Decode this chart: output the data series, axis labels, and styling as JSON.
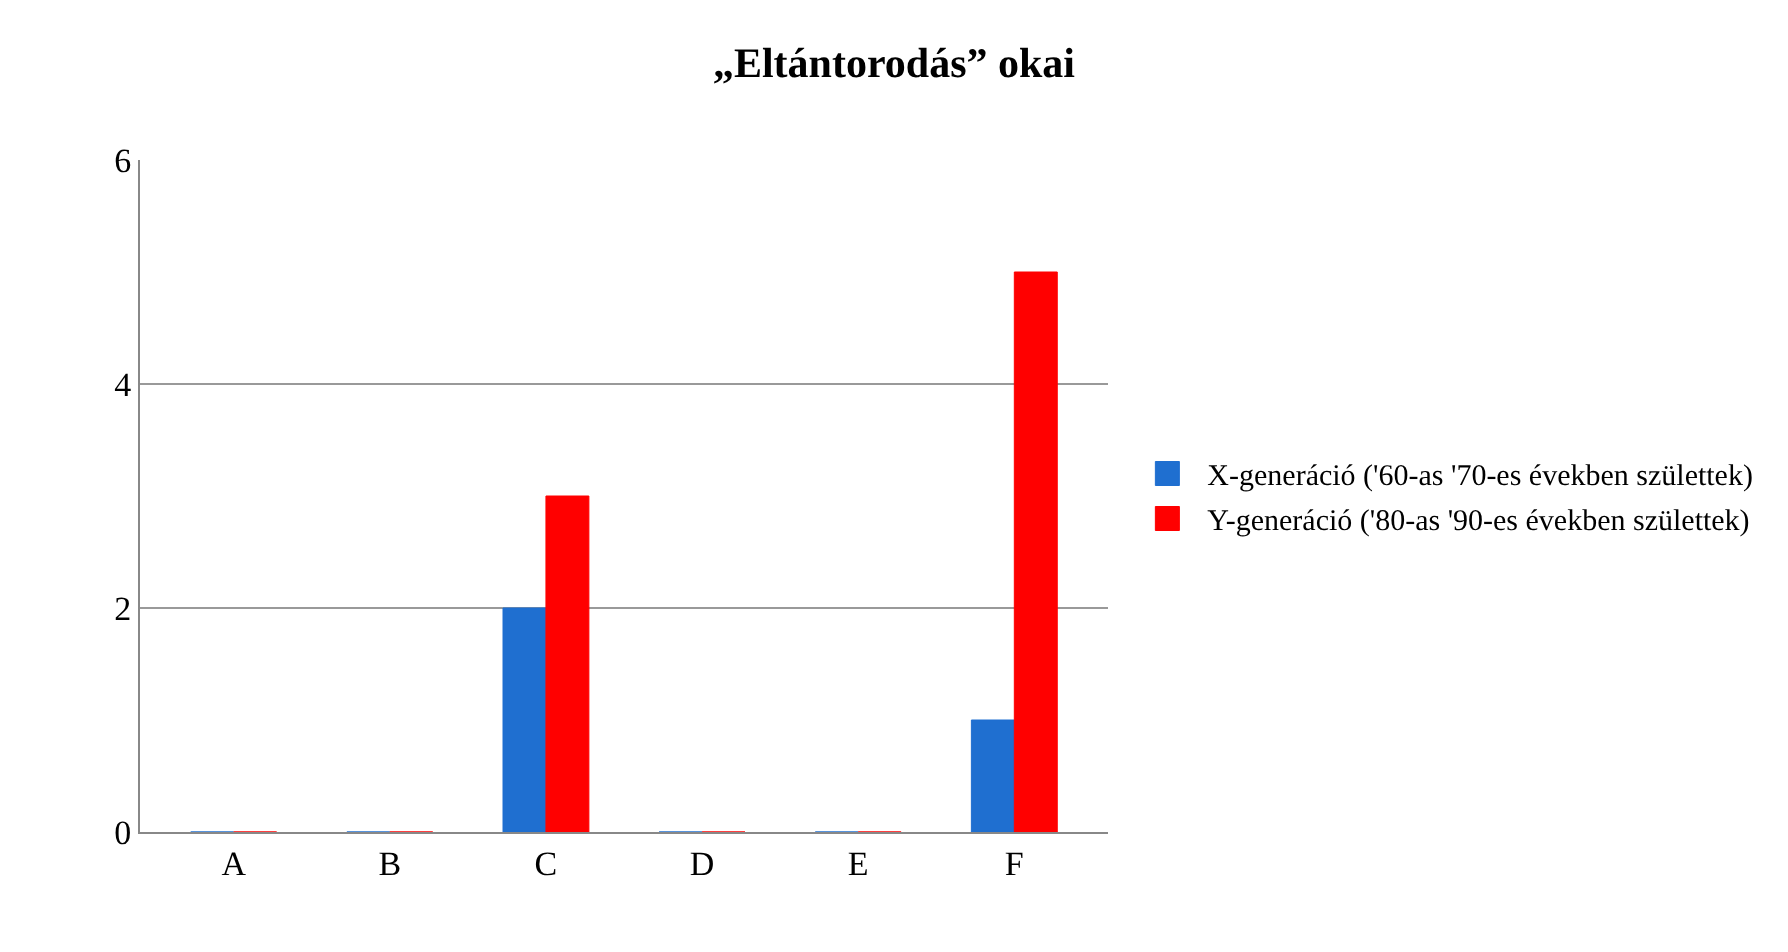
{
  "chart_data": {
    "type": "bar",
    "title": "„Eltántorodás” okai",
    "categories": [
      "A",
      "B",
      "C",
      "D",
      "E",
      "F"
    ],
    "series": [
      {
        "name": "X-generáció ('60-as '70-es években születtek)",
        "color": "#1f6fd0",
        "values": [
          0,
          0,
          2,
          0,
          0,
          1
        ]
      },
      {
        "name": "Y-generáció ('80-as '90-es években születtek)",
        "color": "#ff0000",
        "values": [
          0,
          0,
          3,
          0,
          0,
          5
        ]
      }
    ],
    "ylim": [
      0,
      6
    ],
    "yticks": [
      0,
      2,
      4,
      6
    ],
    "grid": "y",
    "legend": "right"
  }
}
